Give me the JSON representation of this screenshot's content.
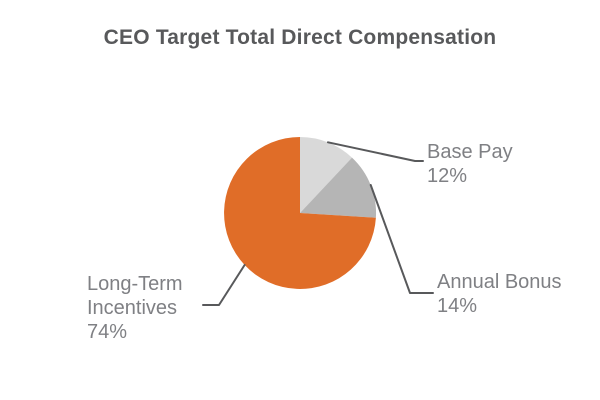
{
  "header": {
    "title": "CEO Target Total Direct Compensation"
  },
  "chart_data": {
    "type": "pie",
    "title": "CEO Target Total Direct Compensation",
    "unit": "percent",
    "start_angle": "12 o'clock",
    "direction": "clockwise",
    "legend_position": "none",
    "label_style": "outside callouts with leader lines",
    "slices": [
      {
        "label": "Base Pay",
        "value": 12,
        "display_value": "12%",
        "color": "#d9d9d9"
      },
      {
        "label": "Annual Bonus",
        "value": 14,
        "display_value": "14%",
        "color": "#b5b5b5"
      },
      {
        "label": "Long-Term Incentives",
        "value": 74,
        "display_value": "74%",
        "color": "#e06d28"
      }
    ],
    "colors": {
      "title_text": "#58595b",
      "label_text": "#7f8084",
      "leader_line": "#58595b",
      "background": "#ffffff"
    }
  }
}
